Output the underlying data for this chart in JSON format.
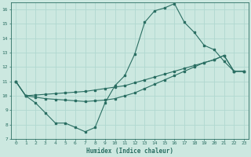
{
  "xlabel": "Humidex (Indice chaleur)",
  "ylabel": "",
  "xlim": [
    -0.5,
    23.5
  ],
  "ylim": [
    7,
    16.5
  ],
  "xticks": [
    0,
    1,
    2,
    3,
    4,
    5,
    6,
    7,
    8,
    9,
    10,
    11,
    12,
    13,
    14,
    15,
    16,
    17,
    18,
    19,
    20,
    21,
    22,
    23
  ],
  "yticks": [
    7,
    8,
    9,
    10,
    11,
    12,
    13,
    14,
    15,
    16
  ],
  "bg_color": "#cce8e0",
  "line_color": "#2a6e62",
  "grid_color": "#b0d8d0",
  "line1_x": [
    0,
    1,
    2,
    3,
    4,
    5,
    6,
    7,
    8,
    9,
    10,
    11,
    12,
    13,
    14,
    15,
    16,
    17,
    18,
    19,
    20,
    21,
    22,
    23
  ],
  "line1_y": [
    11.0,
    10.0,
    9.5,
    8.8,
    8.1,
    8.1,
    7.8,
    7.5,
    7.8,
    9.5,
    10.7,
    11.4,
    12.9,
    15.1,
    15.9,
    16.1,
    16.4,
    15.1,
    14.4,
    13.5,
    13.2,
    12.4,
    11.7,
    11.7
  ],
  "line2_x": [
    0,
    1,
    2,
    3,
    4,
    5,
    6,
    7,
    8,
    9,
    10,
    11,
    12,
    13,
    14,
    15,
    16,
    17,
    18,
    19,
    20,
    21,
    22,
    23
  ],
  "line2_y": [
    11.0,
    10.0,
    10.05,
    10.1,
    10.15,
    10.2,
    10.25,
    10.3,
    10.4,
    10.5,
    10.6,
    10.7,
    10.9,
    11.1,
    11.3,
    11.5,
    11.7,
    11.9,
    12.1,
    12.3,
    12.5,
    12.8,
    11.7,
    11.7
  ],
  "line3_x": [
    0,
    1,
    2,
    3,
    4,
    5,
    6,
    7,
    8,
    9,
    10,
    11,
    12,
    13,
    14,
    15,
    16,
    17,
    18,
    19,
    20,
    21,
    22,
    23
  ],
  "line3_y": [
    11.0,
    10.0,
    9.9,
    9.8,
    9.75,
    9.7,
    9.65,
    9.6,
    9.65,
    9.7,
    9.8,
    10.0,
    10.2,
    10.5,
    10.8,
    11.1,
    11.4,
    11.7,
    12.0,
    12.3,
    12.5,
    12.8,
    11.7,
    11.7
  ]
}
